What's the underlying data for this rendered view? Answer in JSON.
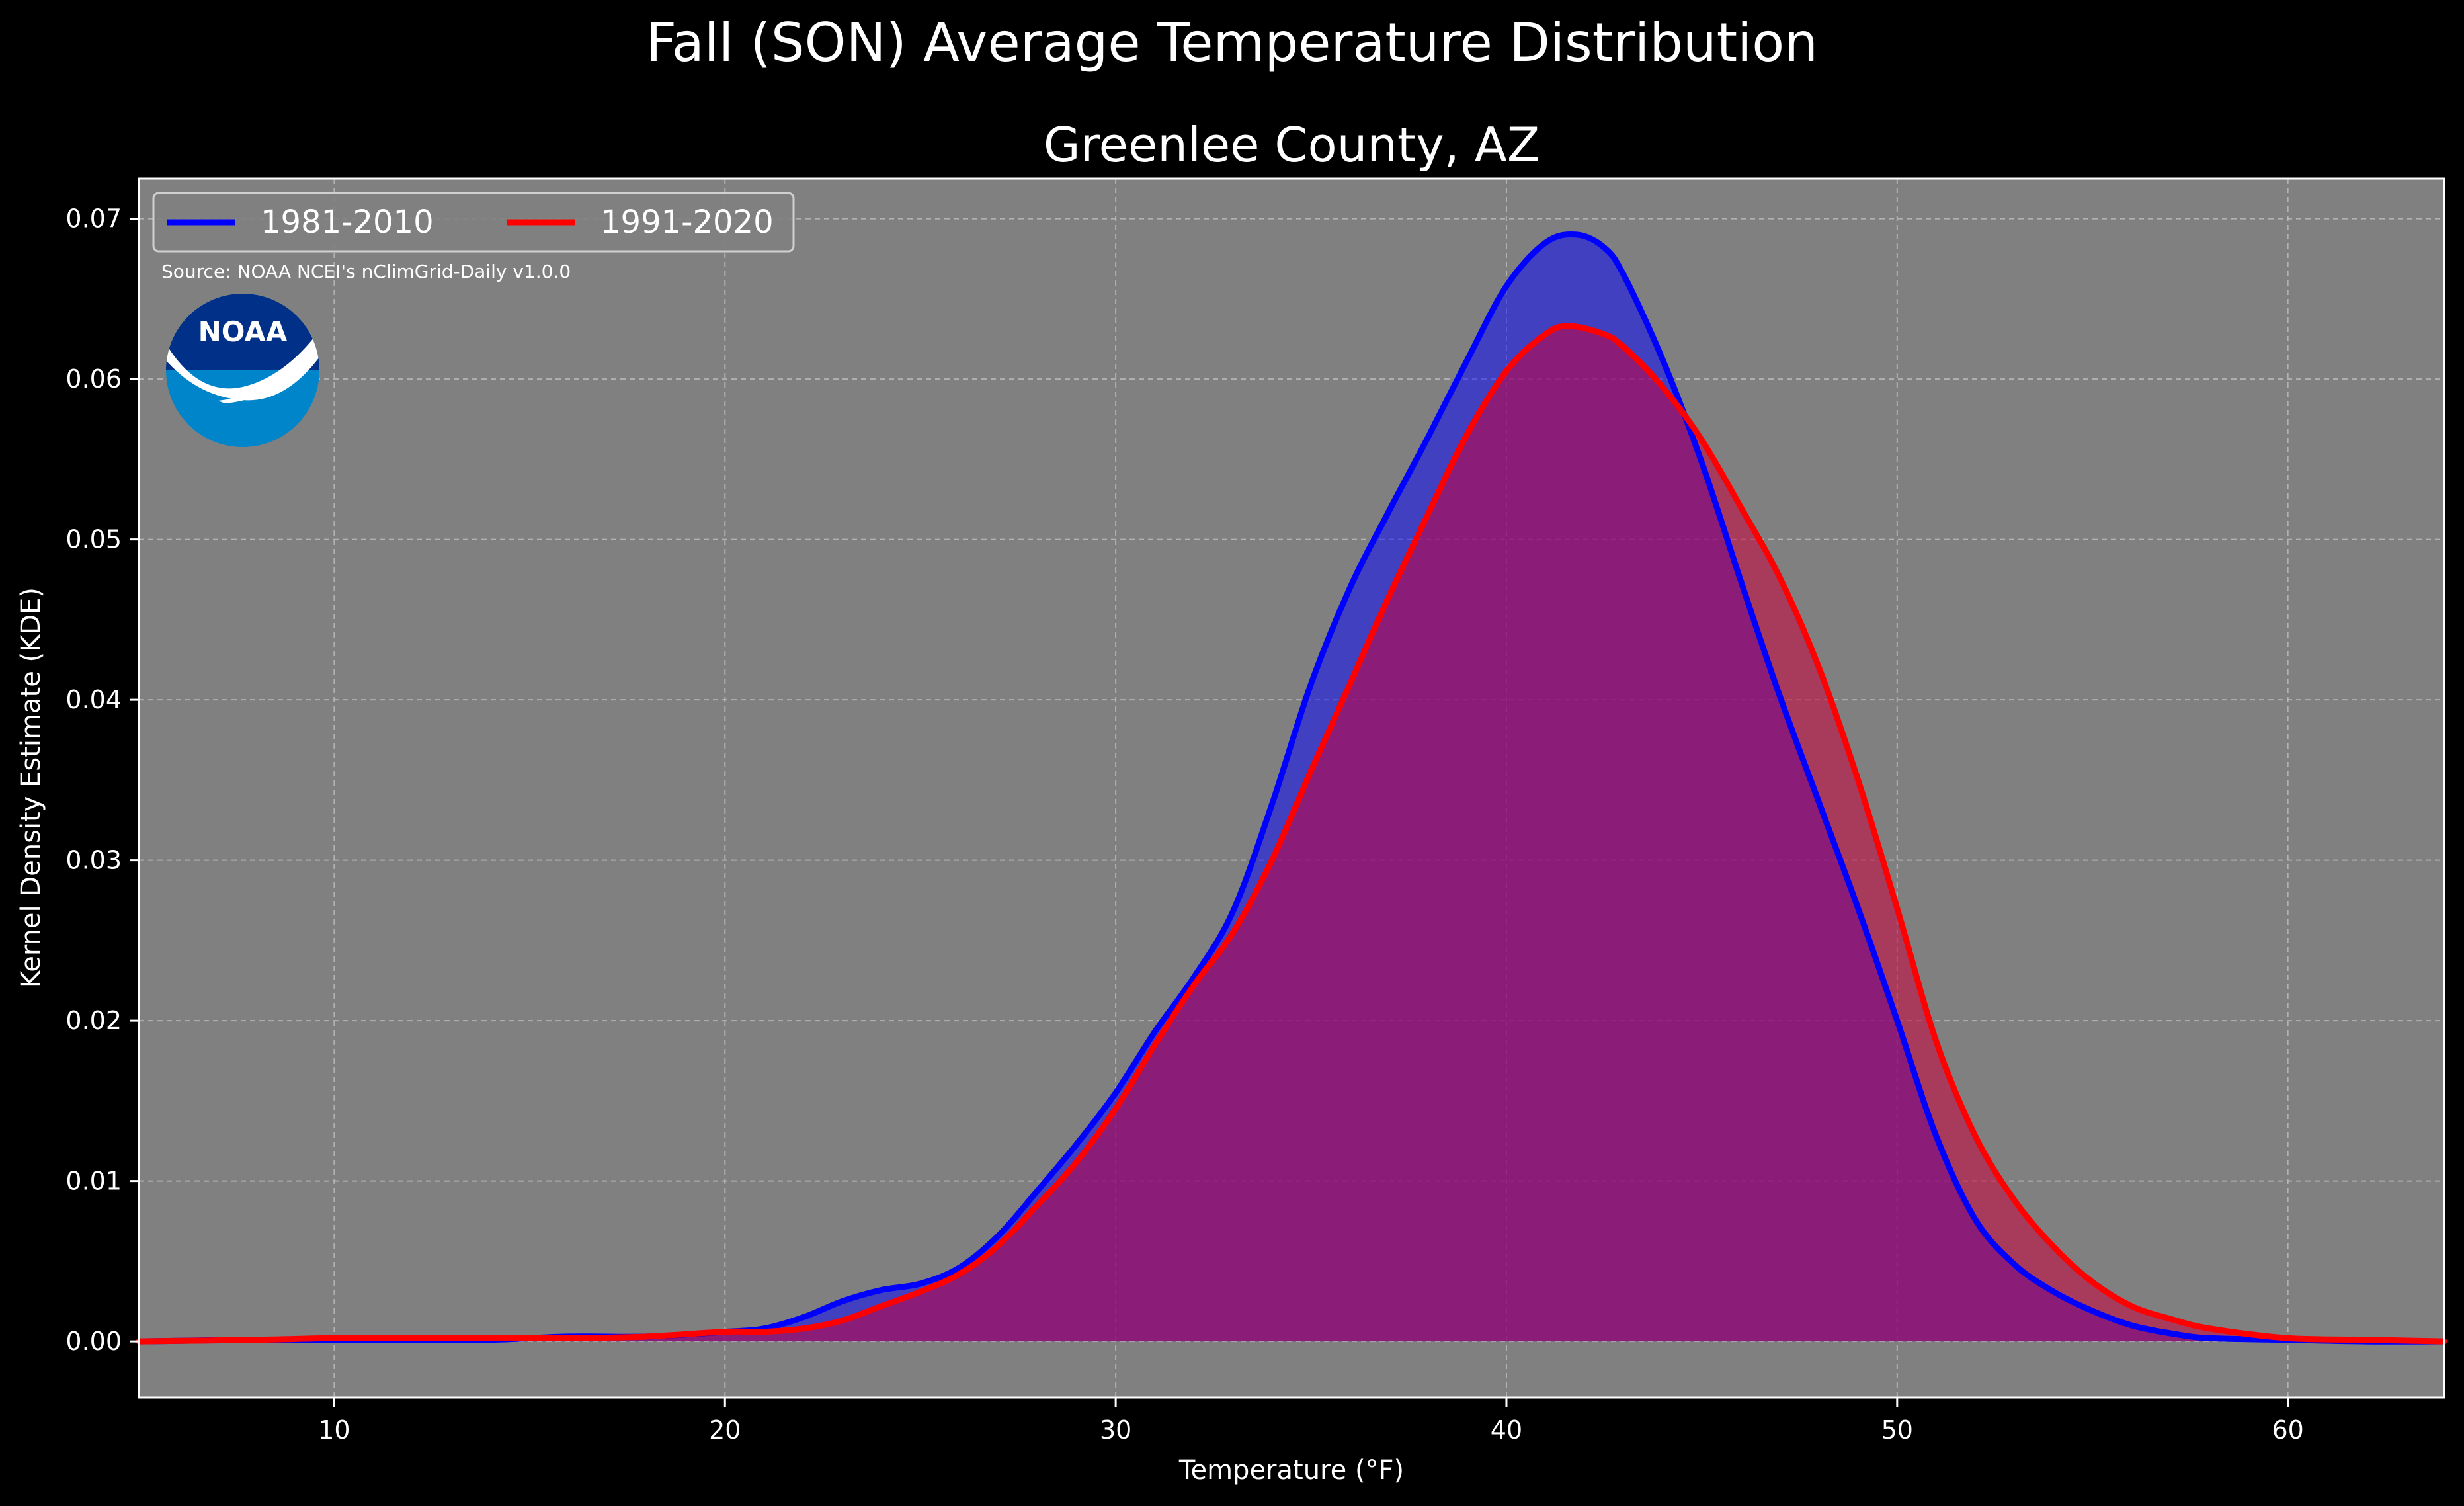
{
  "chart_data": {
    "type": "area",
    "suptitle": "Fall (SON) Average Temperature Distribution",
    "title": "Greenlee County, AZ",
    "xlabel": "Temperature (°F)",
    "ylabel": "Kernel Density Estimate (KDE)",
    "xlim": [
      5,
      64
    ],
    "ylim": [
      -0.0035,
      0.0725
    ],
    "xticks": [
      10,
      20,
      30,
      40,
      50,
      60
    ],
    "yticks": [
      0.0,
      0.01,
      0.02,
      0.03,
      0.04,
      0.05,
      0.06,
      0.07
    ],
    "ytick_labels": [
      "0.00",
      "0.01",
      "0.02",
      "0.03",
      "0.04",
      "0.05",
      "0.06",
      "0.07"
    ],
    "grid": true,
    "legend_position": "top-left",
    "source_note": "Source: NOAA NCEI's nClimGrid-Daily v1.0.0",
    "logo_text": "NOAA",
    "colors": {
      "background": "#000000",
      "axes_face": "#808080",
      "series_1": "#0000ff",
      "series_2": "#ff0000"
    },
    "series": [
      {
        "name": "1981-2010",
        "color": "#0000ff",
        "fill": "rgba(0,0,255,0.5)",
        "x": [
          5,
          8,
          10,
          12,
          14,
          16,
          18,
          20,
          21,
          22,
          23,
          24,
          25,
          26,
          27,
          28,
          29,
          30,
          31,
          32,
          33,
          34,
          35,
          36,
          37,
          38,
          39,
          40,
          41,
          41.8,
          42.5,
          43,
          44,
          45,
          46,
          47,
          48,
          49,
          50,
          51,
          52,
          53,
          54,
          55,
          56,
          57,
          58,
          60,
          62,
          64
        ],
        "y": [
          0.0,
          0.0001,
          0.0001,
          0.0001,
          0.0001,
          0.0003,
          0.0003,
          0.0006,
          0.0008,
          0.0015,
          0.0025,
          0.0032,
          0.0036,
          0.0046,
          0.0066,
          0.0094,
          0.0123,
          0.0155,
          0.0193,
          0.0227,
          0.0268,
          0.0335,
          0.041,
          0.047,
          0.0518,
          0.0564,
          0.0612,
          0.0658,
          0.0685,
          0.069,
          0.0682,
          0.0665,
          0.0612,
          0.0548,
          0.0474,
          0.0402,
          0.0336,
          0.027,
          0.02,
          0.0128,
          0.0076,
          0.0048,
          0.0031,
          0.0019,
          0.001,
          0.0005,
          0.0002,
          0.0001,
          0.0,
          0.0
        ]
      },
      {
        "name": "1991-2020",
        "color": "#ff0000",
        "fill": "rgba(200,0,60,0.55)",
        "x": [
          5,
          8,
          10,
          12,
          14,
          16,
          18,
          20,
          21,
          22,
          23,
          24,
          25,
          26,
          27,
          28,
          29,
          30,
          31,
          32,
          33,
          34,
          35,
          36,
          37,
          38,
          39,
          40,
          41,
          41.6,
          42.5,
          43,
          44,
          45,
          46,
          47,
          48,
          49,
          50,
          51,
          52,
          53,
          54,
          55,
          56,
          57,
          58,
          60,
          62,
          64
        ],
        "y": [
          0.0,
          0.0001,
          0.0002,
          0.0002,
          0.0002,
          0.0002,
          0.0003,
          0.0006,
          0.0006,
          0.0008,
          0.0013,
          0.0022,
          0.0031,
          0.0042,
          0.006,
          0.0085,
          0.0112,
          0.0145,
          0.0185,
          0.0222,
          0.0255,
          0.03,
          0.0356,
          0.041,
          0.0465,
          0.0516,
          0.0566,
          0.0605,
          0.0628,
          0.0633,
          0.0628,
          0.062,
          0.0595,
          0.0562,
          0.052,
          0.0476,
          0.042,
          0.035,
          0.027,
          0.0187,
          0.0128,
          0.0088,
          0.0059,
          0.0037,
          0.0022,
          0.0014,
          0.0008,
          0.0002,
          0.0001,
          0.0
        ]
      }
    ]
  }
}
